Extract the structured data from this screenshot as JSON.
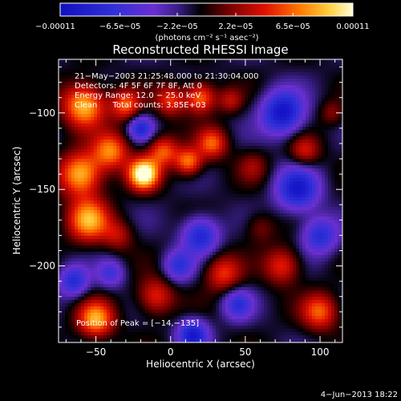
{
  "chart_data": {
    "type": "heatmap",
    "title": "Reconstructed RHESSI Image",
    "xlabel": "Heliocentric X (arcsec)",
    "ylabel": "Heliocentric Y (arcsec)",
    "xlim": [
      -75,
      115
    ],
    "ylim": [
      -250,
      -65
    ],
    "xticks": [
      -50,
      0,
      50,
      100
    ],
    "xtick_labels": [
      "−50",
      "0",
      "50",
      "100"
    ],
    "yticks": [
      -100,
      -150,
      -200
    ],
    "ytick_labels": [
      "−100",
      "−150",
      "−200"
    ],
    "colorbar": {
      "range": [
        -0.00011,
        0.00011
      ],
      "ticks": [
        -0.00011,
        -6.5e-05,
        -2.2e-05,
        2.2e-05,
        6.5e-05,
        0.00011
      ],
      "tick_labels": [
        "−0.00011",
        "−6.5e−05",
        "−2.2e−05",
        "2.2e−05",
        "6.5e−05",
        "0.00011"
      ],
      "units": "(photons cm⁻² s⁻¹ asec⁻²)"
    },
    "annotations": [
      "21−May−2003 21:25:48.000 to 21:30:04.000",
      "Detectors: 4F 5F 6F 7F 8F, Att 0",
      "Energy Range: 12.0 − 25.0 keV",
      "Clean      Total counts: 3.85E+03"
    ],
    "peak_label": "Position of Peak = [−14,−135]",
    "peak": [
      -14,
      -135
    ],
    "grid": false,
    "colors": [
      "#0000d0",
      "#3c00a0",
      "#6030c0",
      "#000000",
      "#8a0000",
      "#ff2000",
      "#ffa000",
      "#fff8a0"
    ]
  },
  "footer": {
    "timestamp": "4−Jun−2013 18:22"
  }
}
